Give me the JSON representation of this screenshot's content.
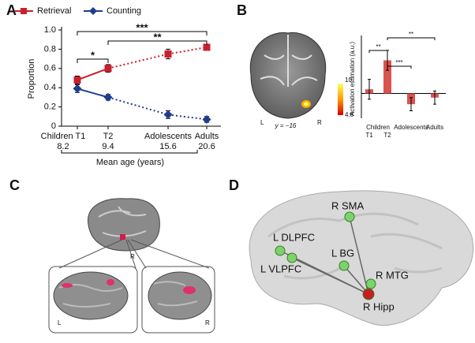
{
  "chart_data": [
    {
      "panel": "A",
      "type": "line",
      "categories": [
        "Children T1",
        "T2",
        "Adolescents",
        "Adults"
      ],
      "ages": [
        8.2,
        9.4,
        15.6,
        20.6
      ],
      "xlabel": "Mean age (years)",
      "ylabel": "Proportion",
      "ylim": [
        0,
        1
      ],
      "yticks": [
        0,
        0.2,
        0.4,
        0.6,
        0.8,
        {
          "value": 1,
          "label": "1.0"
        }
      ],
      "series": [
        {
          "name": "Retrieval",
          "color": "#c8202f",
          "values": [
            0.48,
            0.6,
            0.75,
            0.82
          ],
          "errors": [
            0.04,
            0.04,
            0.05,
            0.03
          ]
        },
        {
          "name": "Counting",
          "color": "#1f3d8f",
          "values": [
            0.39,
            0.3,
            0.12,
            0.07
          ],
          "errors": [
            0.04,
            0.03,
            0.04,
            0.03
          ]
        }
      ],
      "annotations": [
        "***",
        "**",
        "*"
      ]
    },
    {
      "panel": "B",
      "type": "bar",
      "category_group": "Children",
      "categories": [
        "T1",
        "T2",
        "Adolescents",
        "Adults"
      ],
      "values": [
        0.05,
        0.4,
        -0.13,
        -0.05
      ],
      "errors": [
        0.12,
        0.12,
        0.08,
        0.08
      ],
      "color": "#d9534f",
      "ylabel": "Activation estimation (a.u.)",
      "ylim": [
        -0.3,
        0.7
      ],
      "annotations": [
        "**",
        "***",
        "**"
      ],
      "image_labels": {
        "left": "L",
        "right": "R",
        "slice": "y = −16"
      },
      "colorbar": {
        "max": 10,
        "min": 4.8
      }
    }
  ],
  "figures": [
    {
      "panel": "C",
      "labels": [
        "R",
        "L",
        "R"
      ]
    },
    {
      "panel": "D",
      "nodes": [
        {
          "label": "R SMA"
        },
        {
          "label": "L DLPFC"
        },
        {
          "label": "L BG"
        },
        {
          "label": "L VLPFC"
        },
        {
          "label": "R MTG"
        },
        {
          "label": "R Hipp"
        }
      ]
    }
  ]
}
